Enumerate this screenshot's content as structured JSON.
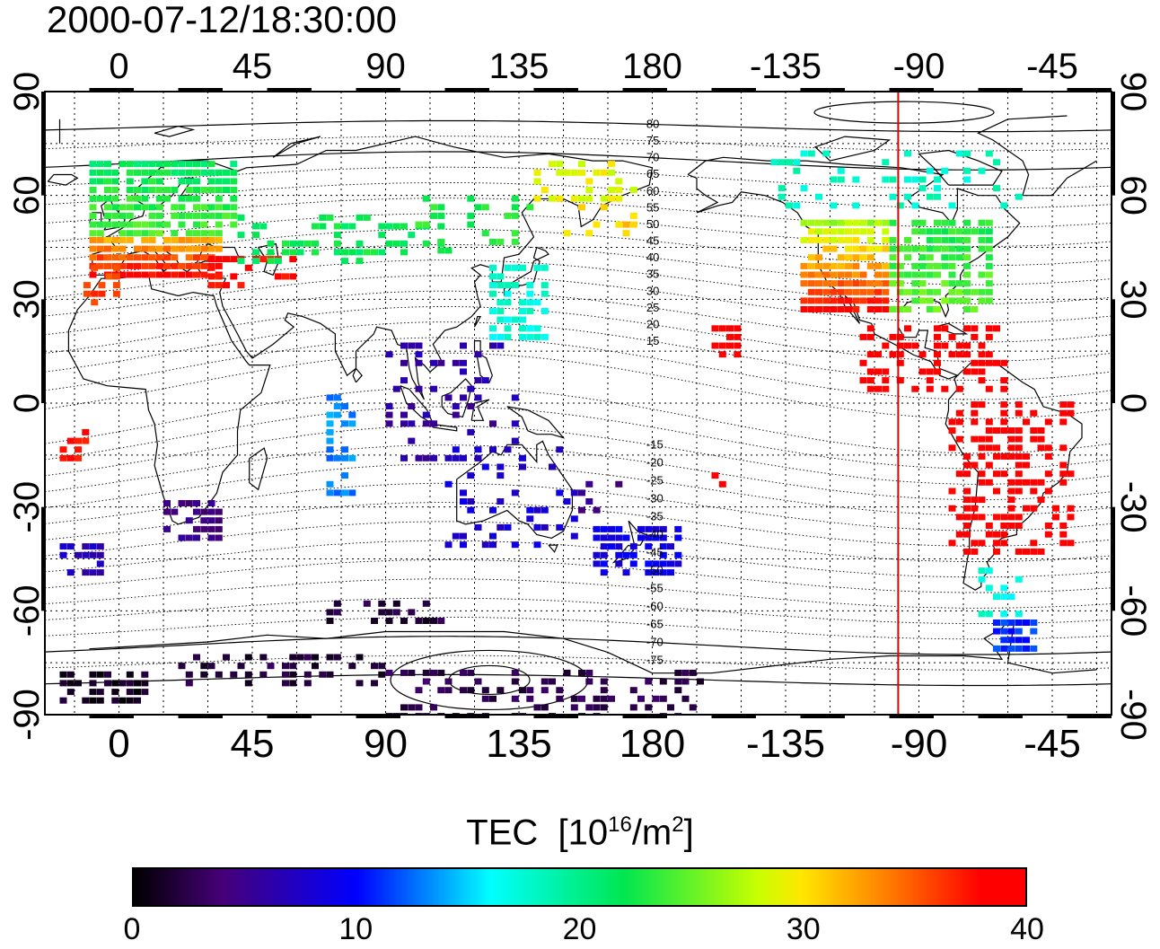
{
  "title": "2000-07-12/18:30:00",
  "map": {
    "lon_ticks": [
      "0",
      "45",
      "90",
      "135",
      "180",
      "-135",
      "-90",
      "-45"
    ],
    "lat_ticks": [
      "90",
      "60",
      "30",
      "0",
      "-30",
      "-60",
      "-90"
    ],
    "geomag_lat_labels_north": [
      "80",
      "75",
      "70",
      "65",
      "60",
      "55",
      "50",
      "45",
      "40",
      "35",
      "30",
      "25",
      "20",
      "15"
    ],
    "geomag_lat_labels_south": [
      "-15",
      "-20",
      "-25",
      "-30",
      "-35",
      "-40",
      "-45",
      "-50",
      "-55",
      "-60",
      "-65",
      "-70",
      "-75"
    ],
    "marker_longitude": -97,
    "marker_color": "#e00000"
  },
  "colorbar": {
    "label_main": "TEC",
    "label_unit_base": "[10",
    "label_unit_exp": "16",
    "label_unit_mid": "/m",
    "label_unit_exp2": "2",
    "label_unit_end": "]",
    "min": 0,
    "max": 40,
    "ticks": [
      "0",
      "10",
      "20",
      "30",
      "40"
    ]
  }
}
